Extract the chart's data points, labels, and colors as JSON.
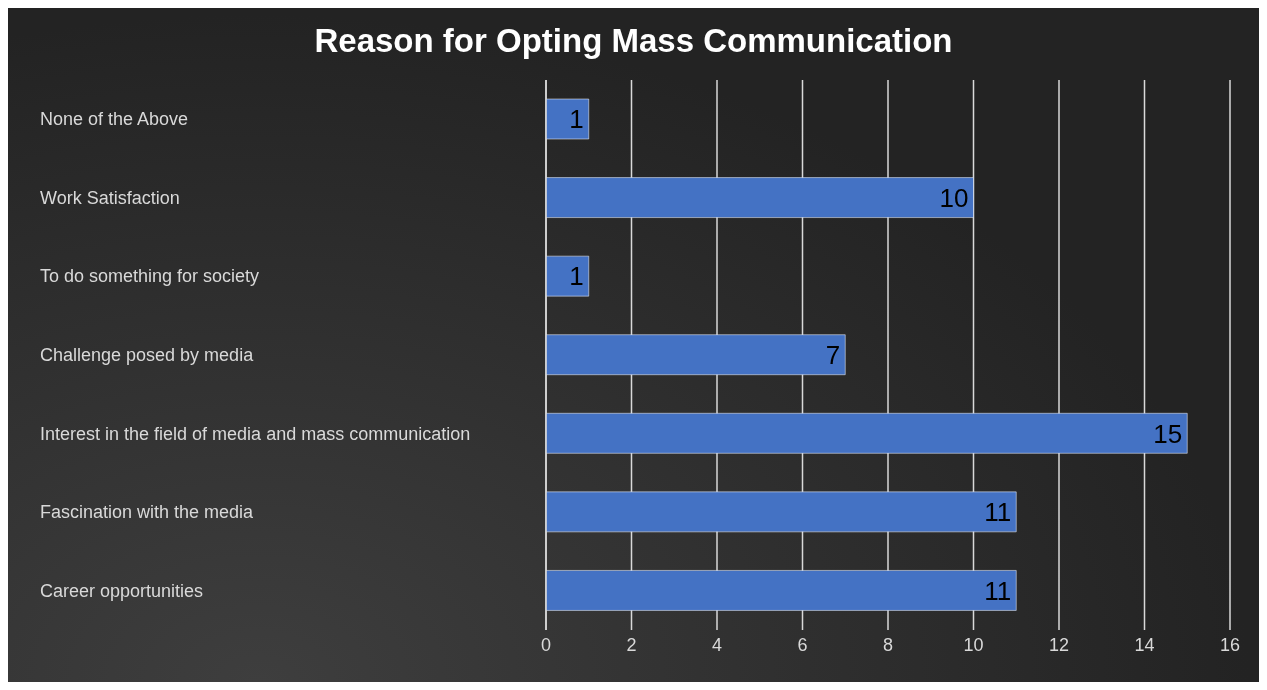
{
  "chart_data": {
    "type": "bar",
    "orientation": "horizontal",
    "title": "Reason for Opting Mass Communication",
    "categories": [
      "None of the Above",
      "Work Satisfaction",
      "To do something for society",
      "Challenge posed by media",
      "Interest in the field of media and mass communication",
      "Fascination with the media",
      "Career opportunities"
    ],
    "values": [
      1,
      10,
      1,
      7,
      15,
      11,
      11
    ],
    "color": "#4472c4",
    "xlim": [
      0,
      16
    ],
    "xticks": [
      0,
      2,
      4,
      6,
      8,
      10,
      12,
      14,
      16
    ],
    "grid": "x",
    "data_labels": true,
    "legend": false
  }
}
